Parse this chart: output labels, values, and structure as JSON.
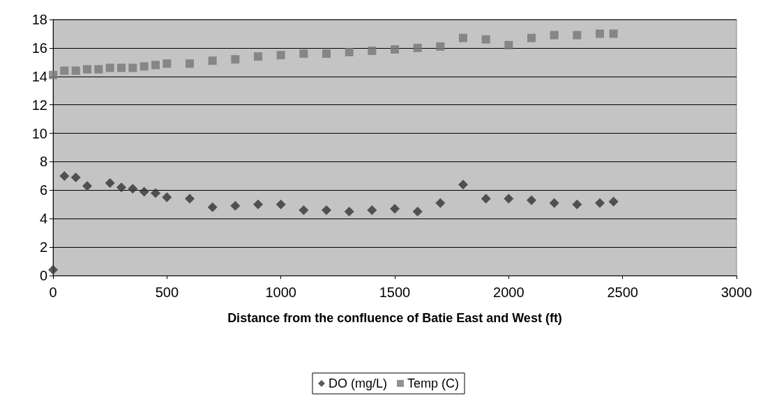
{
  "chart_data": {
    "type": "scatter",
    "xlabel": "Distance from the confluence of Batie East and West (ft)",
    "xlim": [
      0,
      3000
    ],
    "xticks": [
      0,
      500,
      1000,
      1500,
      2000,
      2500,
      3000
    ],
    "ylim": [
      0,
      18
    ],
    "yticks": [
      0,
      2,
      4,
      6,
      8,
      10,
      12,
      14,
      16,
      18
    ],
    "grid": "y",
    "legend": "bottom",
    "series": [
      {
        "name": "DO (mg/L)",
        "color": "#333333",
        "marker": "diamond",
        "x": [
          0,
          50,
          100,
          150,
          250,
          300,
          350,
          400,
          450,
          500,
          600,
          700,
          800,
          900,
          1000,
          1100,
          1200,
          1300,
          1400,
          1500,
          1600,
          1700,
          1800,
          1900,
          2000,
          2100,
          2200,
          2300,
          2400,
          2460
        ],
        "values": [
          0.4,
          7.0,
          6.9,
          6.3,
          6.5,
          6.2,
          6.1,
          5.9,
          5.8,
          5.5,
          5.4,
          4.8,
          4.9,
          5.0,
          5.0,
          4.6,
          4.6,
          4.5,
          4.6,
          4.7,
          4.5,
          5.1,
          6.4,
          5.4,
          5.4,
          5.3,
          5.1,
          5.0,
          5.1,
          5.2
        ]
      },
      {
        "name": "Temp (C)",
        "color": "#777777",
        "marker": "square",
        "x": [
          0,
          50,
          100,
          150,
          200,
          250,
          300,
          350,
          400,
          450,
          500,
          600,
          700,
          800,
          900,
          1000,
          1100,
          1200,
          1300,
          1400,
          1500,
          1600,
          1700,
          1800,
          1900,
          2000,
          2100,
          2200,
          2300,
          2400,
          2460
        ],
        "values": [
          14.1,
          14.4,
          14.4,
          14.5,
          14.5,
          14.6,
          14.6,
          14.6,
          14.7,
          14.8,
          14.9,
          14.9,
          15.1,
          15.2,
          15.4,
          15.5,
          15.6,
          15.6,
          15.7,
          15.8,
          15.9,
          16.0,
          16.1,
          16.7,
          16.6,
          16.2,
          16.7,
          16.9,
          16.9,
          17.0,
          17.0
        ]
      }
    ]
  }
}
